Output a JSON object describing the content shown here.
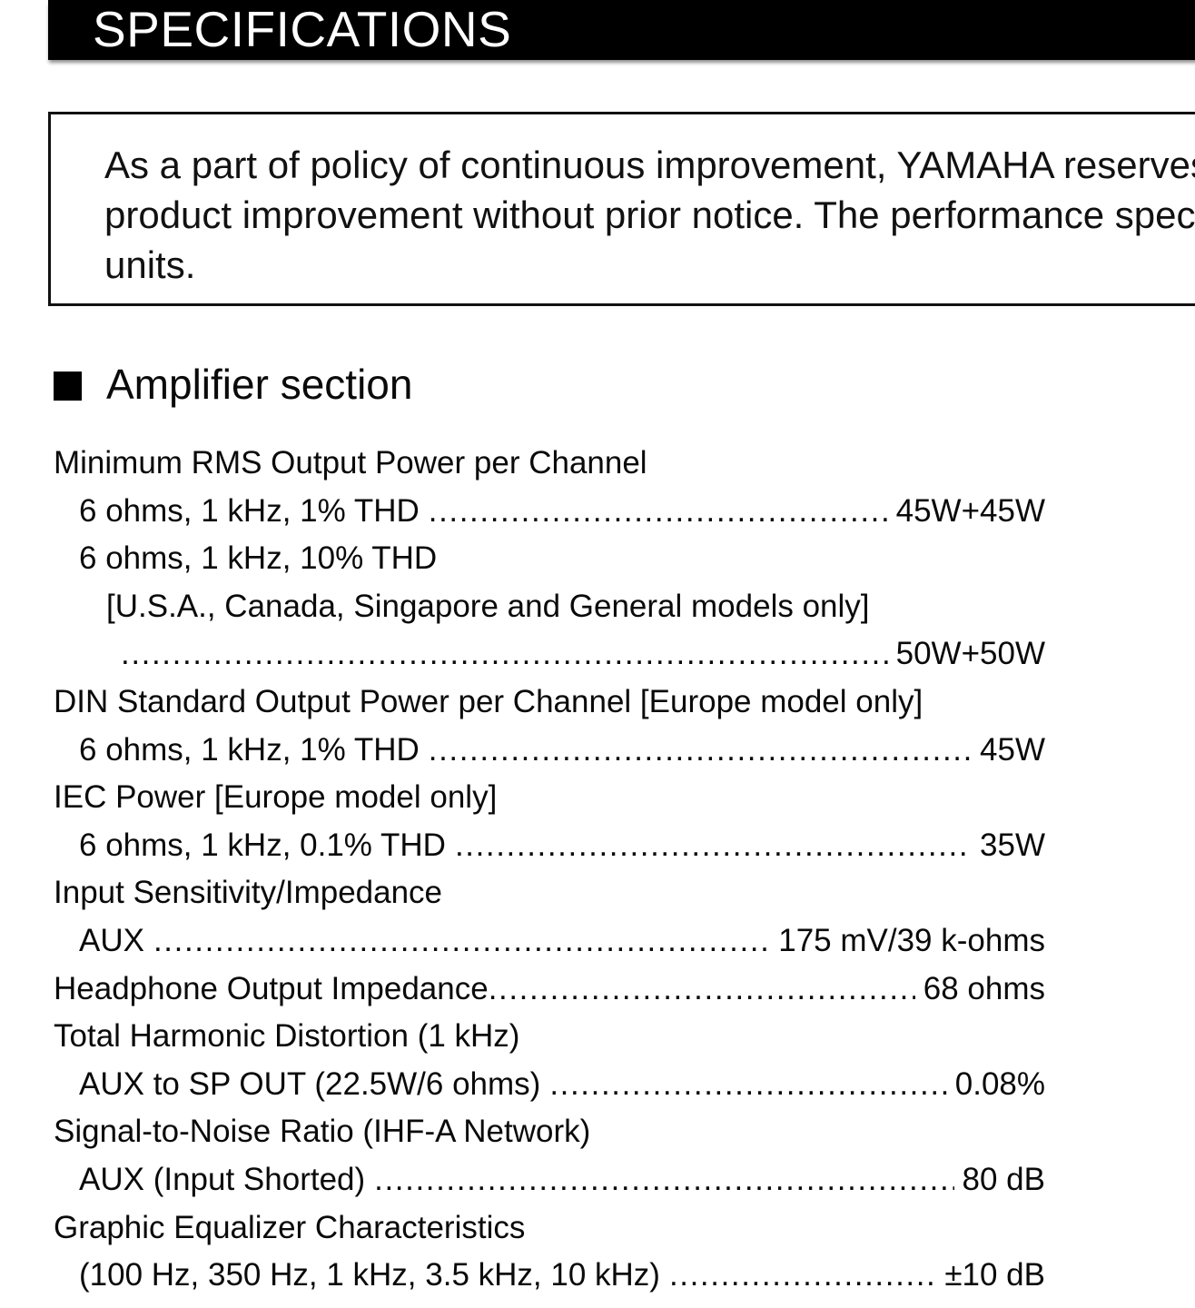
{
  "title": "SPECIFICATIONS",
  "notice": {
    "lines": {
      "0": "As a part of policy of continuous improvement, YAMAHA reserves",
      "1": "product improvement without prior notice. The performance spec",
      "2": "units."
    }
  },
  "section": {
    "heading": "Amplifier section"
  },
  "specs": [
    {
      "label": "Minimum RMS Output Power per Channel",
      "value": null,
      "indent": 0,
      "dots": false
    },
    {
      "label": "6 ohms, 1 kHz, 1% THD",
      "value": "45W+45W",
      "indent": 1,
      "dots": true
    },
    {
      "label": "6 ohms, 1 kHz, 10% THD",
      "value": null,
      "indent": 1,
      "dots": false
    },
    {
      "label": "[U.S.A., Canada, Singapore and General models only]",
      "value": null,
      "indent": 2,
      "dots": false
    },
    {
      "label": "",
      "value": "50W+50W",
      "indent": 3,
      "dots": true
    },
    {
      "label": "DIN Standard Output Power per Channel [Europe model only]",
      "value": null,
      "indent": 0,
      "dots": false
    },
    {
      "label": "6 ohms, 1 kHz, 1% THD",
      "value": "45W",
      "indent": 1,
      "dots": true
    },
    {
      "label": "IEC Power [Europe model only]",
      "value": null,
      "indent": 0,
      "dots": false
    },
    {
      "label": "6 ohms, 1 kHz, 0.1% THD",
      "value": "35W",
      "indent": 1,
      "dots": true
    },
    {
      "label": "Input Sensitivity/Impedance",
      "value": null,
      "indent": 0,
      "dots": false
    },
    {
      "label": "AUX",
      "value": "175 mV/39 k-ohms",
      "indent": 1,
      "dots": true
    },
    {
      "label": "Headphone Output Impedance",
      "value": "68 ohms",
      "indent": 0,
      "dots": true,
      "tight": true
    },
    {
      "label": "Total Harmonic Distortion (1 kHz)",
      "value": null,
      "indent": 0,
      "dots": false
    },
    {
      "label": "AUX to SP OUT (22.5W/6 ohms)",
      "value": "0.08%",
      "indent": 1,
      "dots": true
    },
    {
      "label": "Signal-to-Noise Ratio (IHF-A Network)",
      "value": null,
      "indent": 0,
      "dots": false
    },
    {
      "label": "AUX (Input Shorted)",
      "value": "80 dB",
      "indent": 1,
      "dots": true
    },
    {
      "label": "Graphic Equalizer Characteristics",
      "value": null,
      "indent": 0,
      "dots": false
    },
    {
      "label": "(100 Hz, 350 Hz, 1 kHz, 3.5 kHz, 10 kHz)",
      "value": "±10 dB",
      "indent": 1,
      "dots": true
    }
  ]
}
